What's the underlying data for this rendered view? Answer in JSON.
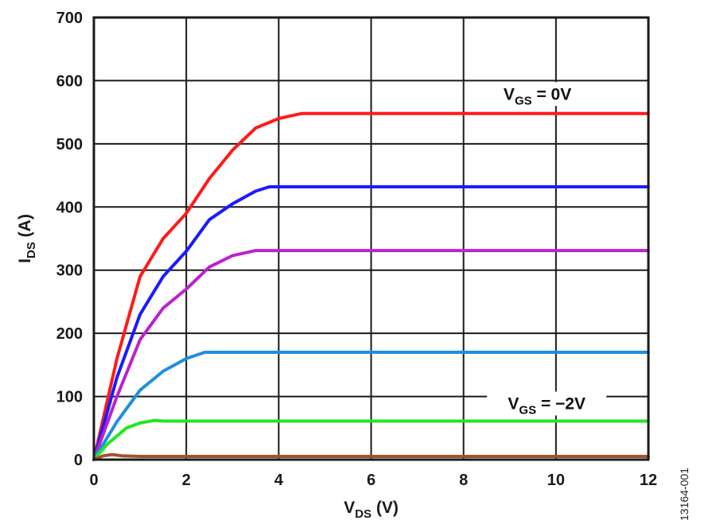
{
  "chart_data": {
    "type": "line",
    "xlabel": {
      "main": "V",
      "sub": "DS",
      "unit": " (V)"
    },
    "ylabel": {
      "main": "I",
      "sub": "DS",
      "unit": " (A)"
    },
    "xlim": [
      0,
      12
    ],
    "ylim": [
      0,
      700
    ],
    "xticks": [
      0,
      2,
      4,
      6,
      8,
      10,
      12
    ],
    "yticks": [
      0,
      100,
      200,
      300,
      400,
      500,
      600,
      700
    ],
    "grid": true,
    "annotations": [
      {
        "main": "V",
        "sub": "GS",
        "text": " = 0V",
        "x": 9.6,
        "y": 570
      },
      {
        "main": "V",
        "sub": "GS",
        "text": " = −2V",
        "x": 9.8,
        "y": 80
      }
    ],
    "series": [
      {
        "color": "#ff1a1a",
        "x": [
          0,
          0.5,
          1,
          1.5,
          2,
          2.5,
          3,
          3.5,
          4,
          4.5,
          12
        ],
        "y": [
          0,
          160,
          290,
          350,
          390,
          445,
          490,
          525,
          540,
          548,
          548
        ]
      },
      {
        "color": "#1a1aff",
        "x": [
          0,
          0.5,
          1,
          1.5,
          2,
          2.5,
          3,
          3.5,
          3.8,
          12
        ],
        "y": [
          0,
          130,
          230,
          290,
          330,
          380,
          405,
          425,
          432,
          432
        ]
      },
      {
        "color": "#bb22cc",
        "x": [
          0,
          0.5,
          1,
          1.5,
          2,
          2.5,
          3,
          3.5,
          12
        ],
        "y": [
          0,
          100,
          190,
          240,
          270,
          305,
          323,
          331,
          331
        ]
      },
      {
        "color": "#1f8fdf",
        "x": [
          0,
          0.5,
          1,
          1.5,
          2,
          2.4,
          12
        ],
        "y": [
          0,
          60,
          110,
          140,
          160,
          170,
          170
        ]
      },
      {
        "color": "#22e622",
        "x": [
          0,
          0.3,
          0.7,
          1,
          1.3,
          1.5,
          12
        ],
        "y": [
          0,
          25,
          50,
          58,
          62,
          61,
          61
        ]
      },
      {
        "color": "#a0522d",
        "x": [
          0,
          0.2,
          0.4,
          0.6,
          1,
          12
        ],
        "y": [
          0,
          6,
          8,
          6,
          5,
          5
        ]
      }
    ]
  },
  "figure_id": "13164-001"
}
